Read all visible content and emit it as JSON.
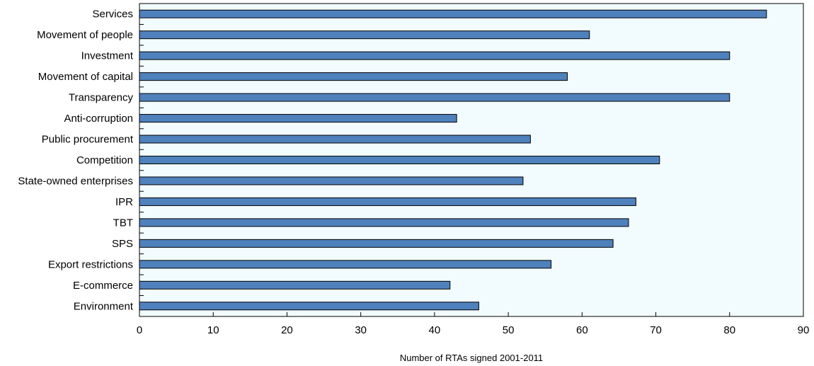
{
  "chart_data": {
    "type": "bar",
    "orientation": "horizontal",
    "categories": [
      "Services",
      "Movement of people",
      "Investment",
      "Movement of capital",
      "Transparency",
      "Anti-corruption",
      "Public procurement",
      "Competition",
      "State-owned enterprises",
      "IPR",
      "TBT",
      "SPS",
      "Export restrictions",
      "E-commerce",
      "Environment"
    ],
    "values": [
      85,
      61,
      80,
      58,
      80,
      43,
      53,
      70.5,
      52,
      67.3,
      66.3,
      64.2,
      55.8,
      42.1,
      46
    ],
    "xlabel": "Number of RTAs signed 2001-2011",
    "ylabel": "",
    "xlim": [
      0,
      90
    ],
    "xticks": [
      "0",
      "10",
      "20",
      "30",
      "40",
      "50",
      "60",
      "70",
      "80",
      "90"
    ],
    "grid": false,
    "legend": "none",
    "colors": {
      "bar_fill": "#4f81bd",
      "bar_stroke": "#000000",
      "plot_background": "#f2fcfe"
    }
  }
}
